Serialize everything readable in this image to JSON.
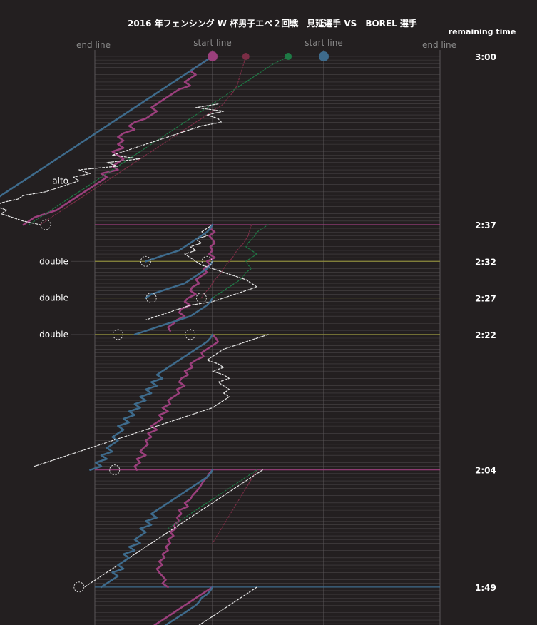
{
  "chart_data": {
    "type": "line",
    "title": "2016 年フェンシング W 杯男子エペ２回戦　見延選手 VS　BOREL 選手",
    "remaining_time_label": "remaining time",
    "piste_labels": {
      "left_end": "end line",
      "left_start": "start line",
      "right_start": "start line",
      "right_end": "end line"
    },
    "time_markers": [
      {
        "label": "3:00",
        "row": 0,
        "color": "none"
      },
      {
        "label": "2:37",
        "row": 46,
        "color": "#9b3f7c"
      },
      {
        "label": "2:32",
        "row": 56,
        "color": "#8c8a3c"
      },
      {
        "label": "2:27",
        "row": 66,
        "color": "#8c8a3c"
      },
      {
        "label": "2:22",
        "row": 76,
        "color": "#8c8a3c"
      },
      {
        "label": "2:04",
        "row": 113,
        "color": "#9b3f7c"
      },
      {
        "label": "1:49",
        "row": 145,
        "color": "#3e6b8c"
      }
    ],
    "events": [
      {
        "label": "alto",
        "row": 34
      },
      {
        "label": "double",
        "row": 56
      },
      {
        "label": "double",
        "row": 66
      },
      {
        "label": "double",
        "row": 76
      }
    ],
    "series": [
      {
        "name": "",
        "color": "#9b3f7c",
        "style": "solid",
        "width": 2.5,
        "segments": [
          {
            "start_row": 0,
            "x": [
              0.0,
              -0.05,
              -0.1,
              -0.15,
              -0.2,
              -0.15,
              -0.2,
              -0.25,
              -0.2,
              -0.3,
              -0.35,
              -0.4,
              -0.45,
              -0.5,
              -0.55,
              -0.5,
              -0.55,
              -0.6,
              -0.7,
              -0.75,
              -0.7,
              -0.8,
              -0.85,
              -0.8,
              -0.85,
              -0.8,
              -0.9,
              -0.85,
              -0.8,
              -0.85,
              -0.9,
              -0.85,
              -1.0,
              -0.95,
              -1.0,
              -1.05,
              -1.1,
              -1.15,
              -1.2,
              -1.25,
              -1.3,
              -1.35,
              -1.4,
              -1.5,
              -1.6,
              -1.65,
              -1.7
            ]
          },
          {
            "start_row": 46,
            "x": [
              0.0,
              -0.02,
              0.02,
              -0.03,
              0.0,
              0.02,
              -0.02,
              0.0,
              -0.03,
              0.02,
              -0.05,
              -0.02,
              -0.08,
              -0.05,
              -0.1,
              -0.15,
              -0.12,
              -0.18,
              -0.2,
              -0.15,
              -0.22,
              -0.25,
              -0.2,
              -0.28,
              -0.3,
              -0.25,
              -0.32,
              -0.35,
              -0.4,
              -0.38
            ]
          },
          {
            "start_row": 76,
            "x": [
              0.0,
              0.03,
              0.05,
              0.0,
              -0.05,
              -0.1,
              -0.08,
              -0.15,
              -0.2,
              -0.18,
              -0.25,
              -0.22,
              -0.28,
              -0.3,
              -0.25,
              -0.32,
              -0.3,
              -0.35,
              -0.4,
              -0.38,
              -0.45,
              -0.4,
              -0.48,
              -0.45,
              -0.5,
              -0.55,
              -0.5,
              -0.58,
              -0.55,
              -0.6,
              -0.58,
              -0.62,
              -0.65,
              -0.6,
              -0.68,
              -0.65,
              -0.7,
              -0.68
            ]
          },
          {
            "start_row": 113,
            "x": [
              0.0,
              -0.03,
              -0.05,
              -0.08,
              -0.1,
              -0.12,
              -0.15,
              -0.18,
              -0.2,
              -0.25,
              -0.22,
              -0.3,
              -0.28,
              -0.32,
              -0.3,
              -0.35,
              -0.33,
              -0.38,
              -0.35,
              -0.4,
              -0.38,
              -0.42,
              -0.4,
              -0.45,
              -0.43,
              -0.48,
              -0.45,
              -0.5,
              -0.48,
              -0.45,
              -0.42,
              -0.45,
              -0.4
            ]
          },
          {
            "start_row": 145,
            "x": [
              0.0,
              -0.05,
              -0.1,
              -0.15,
              -0.2,
              -0.25,
              -0.3,
              -0.35,
              -0.4,
              -0.45,
              -0.5,
              -0.55,
              -0.6,
              -0.65,
              -0.7
            ]
          }
        ]
      },
      {
        "name": "",
        "color": "#7a2d45",
        "style": "dotted",
        "width": 1.2,
        "segments": [
          {
            "start_row": 0,
            "x": [
              0.3,
              0.29,
              0.28,
              0.27,
              0.26,
              0.25,
              0.24,
              0.23,
              0.22,
              0.2,
              0.18,
              0.15,
              0.12,
              0.1,
              0.05,
              0.0,
              -0.05,
              -0.1,
              -0.15,
              -0.2,
              -0.25,
              -0.3,
              -0.35,
              -0.4,
              -0.45,
              -0.5,
              -0.55,
              -0.6,
              -0.65,
              -0.7,
              -0.75,
              -0.8,
              -0.85,
              -0.9,
              -0.95,
              -1.0,
              -1.05,
              -1.1,
              -1.15,
              -1.2,
              -1.25,
              -1.3,
              -1.35,
              -1.4,
              -1.45,
              -1.5,
              -1.55
            ]
          },
          {
            "start_row": 46,
            "x": [
              0.35,
              0.34,
              0.33,
              0.32,
              0.3,
              0.28,
              0.25,
              0.22,
              0.2,
              0.18,
              0.15,
              0.12,
              0.1,
              0.08,
              0.05,
              0.02,
              0.0,
              -0.02,
              -0.05,
              -0.08,
              -0.1
            ]
          },
          {
            "start_row": 113,
            "x": [
              0.4,
              0.38,
              0.36,
              0.34,
              0.32,
              0.3,
              0.28,
              0.26,
              0.24,
              0.22,
              0.2,
              0.18,
              0.16,
              0.14,
              0.12,
              0.1,
              0.08,
              0.06,
              0.04,
              0.02,
              0.0
            ]
          }
        ]
      },
      {
        "name": "",
        "color": "#1e7a45",
        "style": "dotted",
        "width": 1.2,
        "segments": [
          {
            "start_row": 0,
            "x": [
              0.68,
              0.62,
              0.55,
              0.5,
              0.45,
              0.4,
              0.35,
              0.3,
              0.25,
              0.2,
              0.15,
              0.1,
              0.05,
              0.0,
              -0.05,
              -0.1,
              -0.15,
              -0.2,
              -0.25,
              -0.3,
              -0.35,
              -0.4,
              -0.45,
              -0.5,
              -0.55,
              -0.6,
              -0.65,
              -0.7,
              -0.75,
              -0.8,
              -0.85,
              -0.9,
              -0.95,
              -1.0,
              -1.05,
              -1.1,
              -1.15,
              -1.2,
              -1.25,
              -1.3,
              -1.35,
              -1.4,
              -1.45,
              -1.5,
              -1.55,
              -1.6,
              -1.65
            ]
          },
          {
            "start_row": 46,
            "x": [
              0.5,
              0.45,
              0.4,
              0.38,
              0.35,
              0.32,
              0.3,
              0.35,
              0.4,
              0.35,
              0.3,
              0.32,
              0.35,
              0.3,
              0.28,
              0.25,
              0.2,
              0.15,
              0.1,
              0.05,
              0.0
            ]
          },
          {
            "start_row": 113,
            "x": [
              0.4,
              0.35,
              0.3,
              0.25,
              0.2,
              0.15,
              0.1,
              0.05,
              0.0,
              -0.05,
              -0.1,
              -0.15,
              -0.2,
              -0.25,
              -0.3,
              -0.35,
              -0.4
            ]
          }
        ]
      },
      {
        "name": "",
        "color": "#e8e8e8",
        "style": "dashed",
        "width": 1.2,
        "segments": [
          {
            "start_row": 13,
            "x": [
              0.05,
              -0.15,
              0.1,
              -0.05,
              0.05,
              0.08,
              -0.1,
              -0.2,
              -0.3,
              -0.4,
              -0.5,
              -0.6,
              -0.7,
              -0.8,
              -0.9,
              -0.65,
              -0.95,
              -0.85,
              -1.2,
              -1.1,
              -1.25,
              -1.2,
              -1.3,
              -1.4,
              -1.5,
              -1.7,
              -1.75,
              -1.9,
              -1.95,
              -1.85,
              -1.9,
              -1.8,
              -1.7,
              -1.55
            ]
          },
          {
            "start_row": 46,
            "x": [
              0.0,
              -0.05,
              -0.1,
              -0.05,
              -0.15,
              -0.1,
              -0.2,
              -0.15,
              -0.25,
              -0.2,
              -0.15,
              -0.1,
              0.0,
              0.1,
              0.2,
              0.3,
              0.35,
              0.4,
              0.3,
              0.2,
              0.1,
              0.0,
              -0.2,
              -0.3,
              -0.4,
              -0.5,
              -0.6
            ]
          },
          {
            "start_row": 76,
            "x": [
              0.5,
              0.4,
              0.3,
              0.2,
              0.1,
              0.05,
              0.0,
              -0.05,
              0.05,
              0.1,
              0.0,
              0.1,
              0.15,
              0.05,
              0.1,
              0.15,
              0.1,
              0.15,
              0.1,
              0.05,
              0.0,
              -0.1,
              -0.2,
              -0.3,
              -0.4,
              -0.5,
              -0.6,
              -0.7,
              -0.8,
              -0.9,
              -1.0,
              -1.1,
              -1.2,
              -1.3,
              -1.4,
              -1.5,
              -1.6
            ]
          },
          {
            "start_row": 113,
            "x": [
              0.45,
              0.4,
              0.35,
              0.3,
              0.25,
              0.2,
              0.15,
              0.1,
              0.05,
              0.0,
              -0.05,
              -0.1,
              -0.15,
              -0.2,
              -0.25,
              -0.3,
              -0.35,
              -0.4,
              -0.45,
              -0.5,
              -0.55,
              -0.6,
              -0.65,
              -0.7,
              -0.75,
              -0.8,
              -0.85,
              -0.9,
              -0.95,
              -1.0,
              -1.05,
              -1.1,
              -1.15
            ]
          },
          {
            "start_row": 145,
            "x": [
              0.4,
              0.35,
              0.3,
              0.25,
              0.2,
              0.15,
              0.1,
              0.05,
              0.0,
              -0.05,
              -0.1,
              -0.15,
              -0.2,
              -0.25,
              -0.3
            ]
          }
        ]
      },
      {
        "name": "",
        "color": "#3e6b8c",
        "style": "solid",
        "width": 2.5,
        "segments": [
          {
            "start_row": 0,
            "x": [
              0.0,
              -0.05,
              -0.1,
              -0.15,
              -0.2,
              -0.25,
              -0.3,
              -0.35,
              -0.4,
              -0.45,
              -0.5,
              -0.55,
              -0.6,
              -0.65,
              -0.7,
              -0.75,
              -0.8,
              -0.85,
              -0.9,
              -0.95,
              -1.0,
              -1.05,
              -1.1,
              -1.15,
              -1.2,
              -1.25,
              -1.3,
              -1.35,
              -1.4,
              -1.45,
              -1.5,
              -1.55,
              -1.6,
              -1.65,
              -1.7,
              -1.75,
              -1.8,
              -1.85,
              -1.9,
              -1.95,
              -2.0,
              -2.05,
              -2.1,
              -2.15,
              -2.2,
              -2.25,
              -2.3
            ]
          },
          {
            "start_row": 46,
            "x": [
              0.0,
              -0.02,
              -0.05,
              -0.1,
              -0.15,
              -0.2,
              -0.25,
              -0.3,
              -0.4,
              -0.5,
              -0.6
            ]
          },
          {
            "start_row": 56,
            "x": [
              0.0,
              -0.02,
              -0.05,
              -0.1,
              -0.15,
              -0.2,
              -0.25,
              -0.35,
              -0.45,
              -0.55,
              -0.6
            ]
          },
          {
            "start_row": 66,
            "x": [
              0.0,
              -0.02,
              -0.05,
              -0.1,
              -0.15,
              -0.2,
              -0.3,
              -0.4,
              -0.5,
              -0.6,
              -0.7
            ]
          },
          {
            "start_row": 76,
            "x": [
              0.0,
              -0.02,
              -0.05,
              -0.1,
              -0.15,
              -0.2,
              -0.25,
              -0.3,
              -0.35,
              -0.4,
              -0.45,
              -0.5,
              -0.45,
              -0.55,
              -0.5,
              -0.6,
              -0.55,
              -0.65,
              -0.6,
              -0.7,
              -0.65,
              -0.75,
              -0.7,
              -0.8,
              -0.75,
              -0.85,
              -0.8,
              -0.85,
              -0.9,
              -0.85,
              -0.9,
              -0.95,
              -0.9,
              -1.0,
              -0.95,
              -1.05,
              -1.0,
              -1.1
            ]
          },
          {
            "start_row": 113,
            "x": [
              0.0,
              -0.02,
              -0.05,
              -0.1,
              -0.15,
              -0.2,
              -0.25,
              -0.3,
              -0.35,
              -0.4,
              -0.45,
              -0.5,
              -0.55,
              -0.5,
              -0.6,
              -0.55,
              -0.65,
              -0.6,
              -0.65,
              -0.7,
              -0.65,
              -0.75,
              -0.7,
              -0.8,
              -0.75,
              -0.8,
              -0.85,
              -0.8,
              -0.9,
              -0.85,
              -0.9,
              -0.95,
              -1.0
            ]
          },
          {
            "start_row": 145,
            "x": [
              0.0,
              -0.02,
              -0.05,
              -0.1,
              -0.12,
              -0.15,
              -0.2,
              -0.25,
              -0.3,
              -0.35,
              -0.4,
              -0.45,
              -0.5,
              -0.55,
              -0.6
            ]
          }
        ]
      }
    ],
    "circles": [
      {
        "row": 46,
        "x": -1.5,
        "color": "#e8e8e8"
      },
      {
        "row": 56,
        "x": -0.05,
        "color": "#e8e8e8"
      },
      {
        "row": 56,
        "x": -0.6,
        "color": "#e8e8e8"
      },
      {
        "row": 66,
        "x": -0.1,
        "color": "#e8e8e8"
      },
      {
        "row": 66,
        "x": -0.55,
        "color": "#e8e8e8"
      },
      {
        "row": 76,
        "x": -0.2,
        "color": "#e8e8e8"
      },
      {
        "row": 76,
        "x": -0.85,
        "color": "#e8e8e8"
      },
      {
        "row": 113,
        "x": -0.88,
        "color": "#e8e8e8"
      },
      {
        "row": 145,
        "x": -1.2,
        "color": "#e8e8e8"
      }
    ],
    "start_dots": [
      {
        "x": 0.0,
        "color": "#9b3f7c",
        "size": "large"
      },
      {
        "x": 0.3,
        "color": "#7a2d45",
        "size": "small"
      },
      {
        "x": 0.68,
        "color": "#1e7a45",
        "size": "small"
      },
      {
        "x": 1.0,
        "color": "#3e6b8c",
        "size": "large"
      }
    ]
  }
}
